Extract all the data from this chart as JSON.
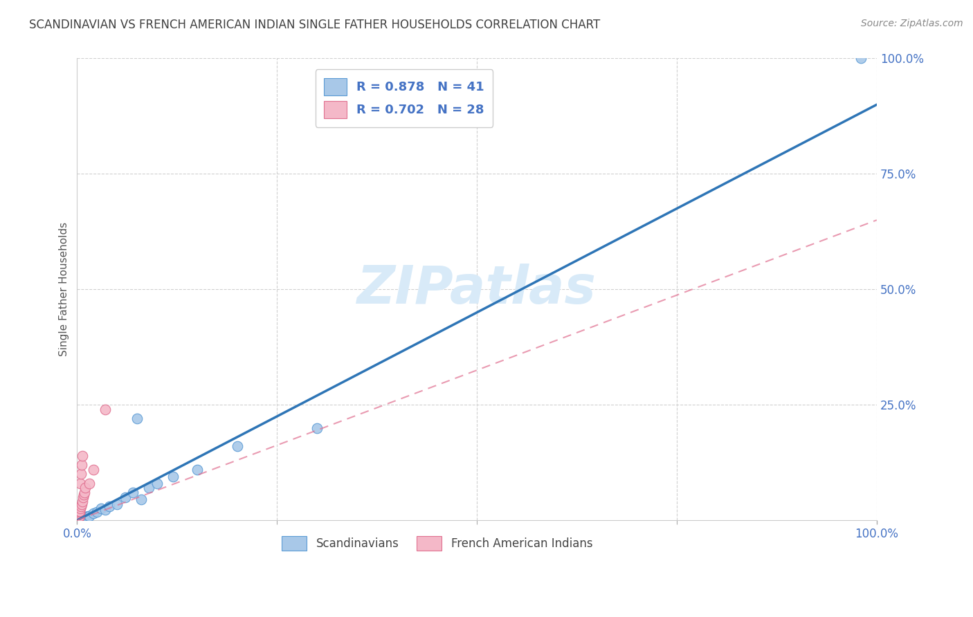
{
  "title": "SCANDINAVIAN VS FRENCH AMERICAN INDIAN SINGLE FATHER HOUSEHOLDS CORRELATION CHART",
  "source": "Source: ZipAtlas.com",
  "ylabel": "Single Father Households",
  "legend_label1": "Scandinavians",
  "legend_label2": "French American Indians",
  "R1": 0.878,
  "N1": 41,
  "R2": 0.702,
  "N2": 28,
  "blue_color": "#a8c8e8",
  "blue_edge_color": "#5b9bd5",
  "blue_line_color": "#2e75b6",
  "pink_color": "#f4b8c8",
  "pink_edge_color": "#e07090",
  "pink_line_color": "#e07090",
  "watermark_color": "#d8eaf8",
  "title_color": "#404040",
  "source_color": "#888888",
  "axis_label_color": "#4472c4",
  "grid_color": "#d0d0d0",
  "blue_scatter": [
    [
      0.1,
      0.1
    ],
    [
      0.15,
      0.08
    ],
    [
      0.2,
      0.15
    ],
    [
      0.25,
      0.12
    ],
    [
      0.3,
      0.18
    ],
    [
      0.35,
      0.2
    ],
    [
      0.4,
      0.25
    ],
    [
      0.45,
      0.22
    ],
    [
      0.5,
      0.3
    ],
    [
      0.55,
      0.28
    ],
    [
      0.6,
      0.35
    ],
    [
      0.65,
      0.38
    ],
    [
      0.7,
      0.4
    ],
    [
      0.75,
      0.45
    ],
    [
      0.8,
      0.5
    ],
    [
      0.85,
      0.55
    ],
    [
      0.9,
      0.6
    ],
    [
      0.95,
      0.62
    ],
    [
      1.0,
      0.65
    ],
    [
      1.1,
      0.7
    ],
    [
      1.2,
      0.75
    ],
    [
      1.3,
      0.8
    ],
    [
      1.4,
      0.85
    ],
    [
      1.5,
      0.9
    ],
    [
      2.0,
      1.5
    ],
    [
      2.5,
      1.8
    ],
    [
      3.0,
      2.5
    ],
    [
      3.5,
      2.2
    ],
    [
      4.0,
      3.0
    ],
    [
      5.0,
      3.5
    ],
    [
      6.0,
      5.0
    ],
    [
      7.0,
      6.0
    ],
    [
      8.0,
      4.5
    ],
    [
      9.0,
      7.0
    ],
    [
      10.0,
      8.0
    ],
    [
      12.0,
      9.5
    ],
    [
      15.0,
      11.0
    ],
    [
      7.5,
      22.0
    ],
    [
      20.0,
      16.0
    ],
    [
      30.0,
      20.0
    ],
    [
      98.0,
      100.0
    ]
  ],
  "pink_scatter": [
    [
      0.05,
      0.5
    ],
    [
      0.08,
      1.5
    ],
    [
      0.1,
      0.3
    ],
    [
      0.12,
      0.4
    ],
    [
      0.15,
      0.6
    ],
    [
      0.18,
      0.8
    ],
    [
      0.2,
      1.0
    ],
    [
      0.22,
      0.7
    ],
    [
      0.25,
      1.2
    ],
    [
      0.28,
      0.9
    ],
    [
      0.3,
      1.5
    ],
    [
      0.32,
      1.8
    ],
    [
      0.35,
      2.0
    ],
    [
      0.38,
      2.5
    ],
    [
      0.4,
      8.0
    ],
    [
      0.45,
      3.0
    ],
    [
      0.5,
      10.0
    ],
    [
      0.55,
      3.5
    ],
    [
      0.6,
      12.0
    ],
    [
      0.65,
      4.0
    ],
    [
      0.7,
      14.0
    ],
    [
      0.75,
      5.0
    ],
    [
      0.8,
      5.5
    ],
    [
      0.9,
      6.0
    ],
    [
      1.0,
      7.0
    ],
    [
      1.5,
      8.0
    ],
    [
      2.0,
      11.0
    ],
    [
      3.5,
      24.0
    ]
  ],
  "blue_line_x": [
    0,
    100
  ],
  "blue_line_y": [
    0,
    90
  ],
  "pink_line_x": [
    0,
    100
  ],
  "pink_line_y": [
    0,
    65
  ],
  "xlim": [
    0,
    100
  ],
  "ylim": [
    0,
    100
  ]
}
